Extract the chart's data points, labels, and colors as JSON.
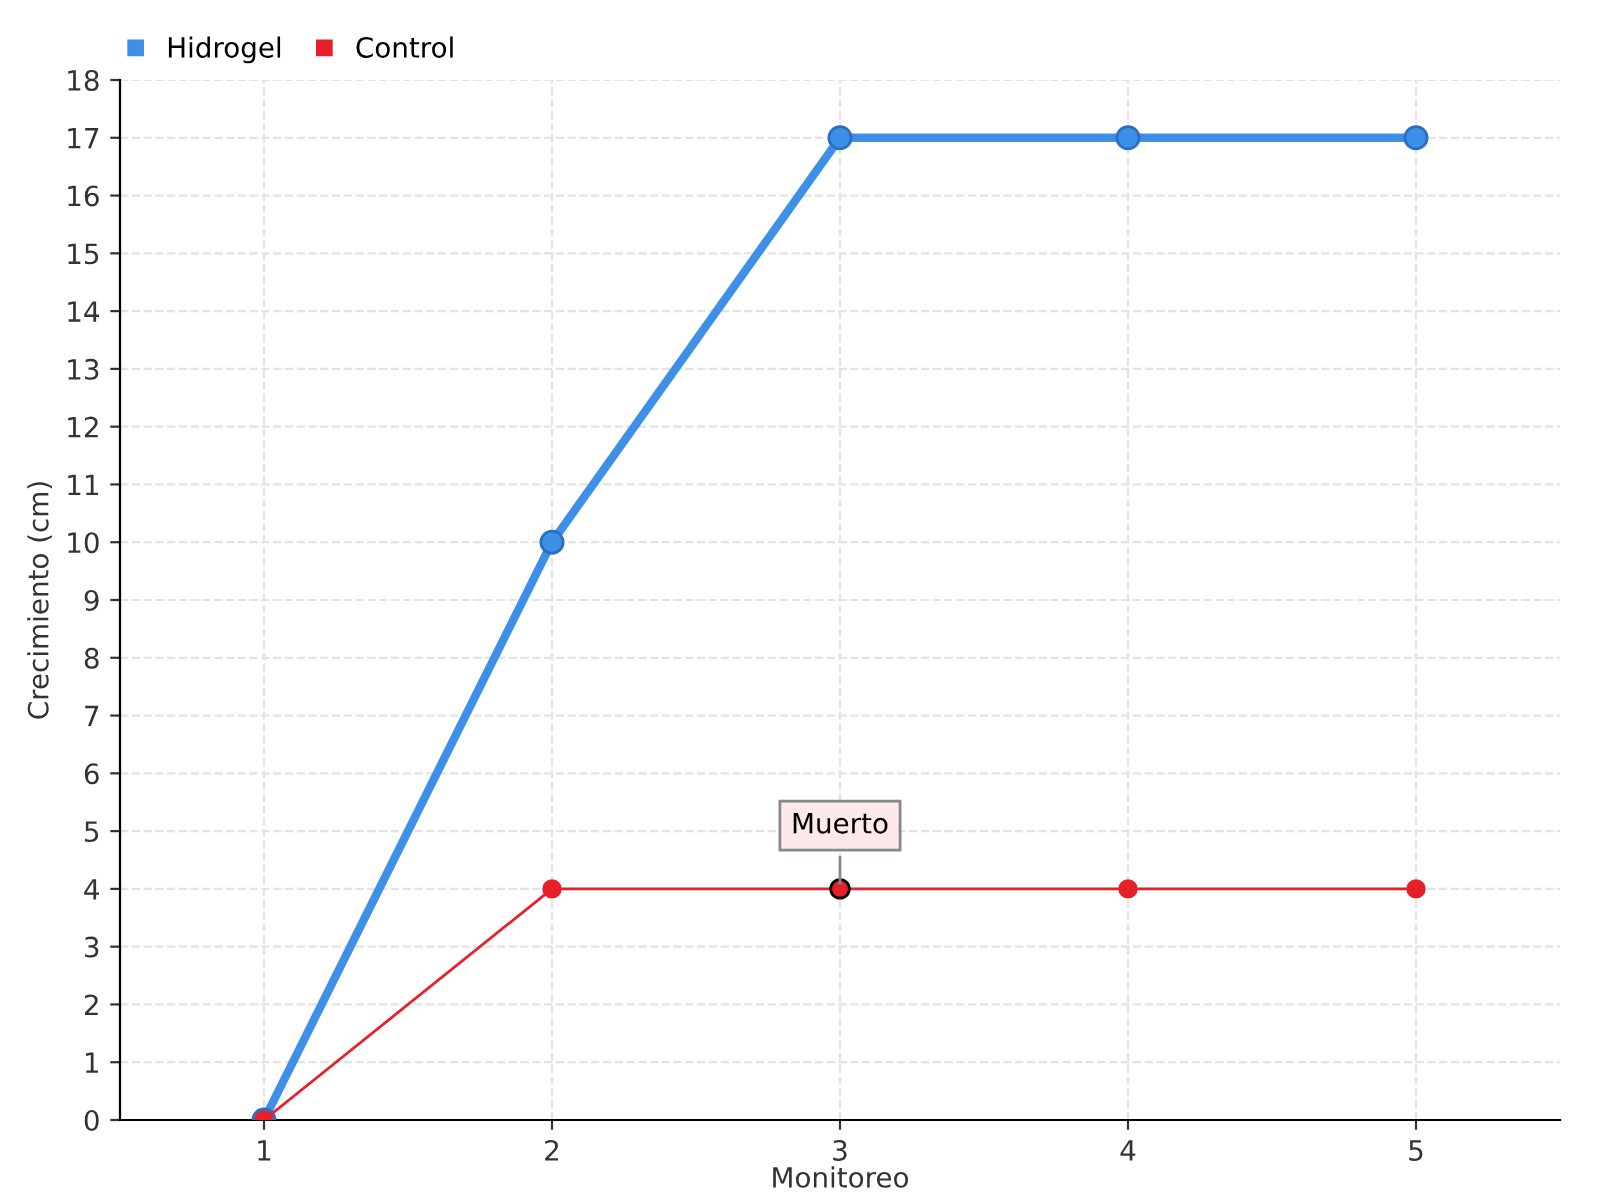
{
  "chart_data": {
    "type": "line",
    "xlabel": "Monitoreo",
    "ylabel": "Crecimiento (cm)",
    "x": [
      1,
      2,
      3,
      4,
      5
    ],
    "series": [
      {
        "name": "Hidrogel",
        "color": "#3d8fe8",
        "values": [
          0,
          10,
          17,
          17,
          17
        ]
      },
      {
        "name": "Control",
        "color": "#e8202a",
        "values": [
          0,
          4,
          4,
          4,
          4
        ]
      }
    ],
    "xlim": [
      0.5,
      5.5
    ],
    "xticks": [
      1,
      2,
      3,
      4,
      5
    ],
    "ylim": [
      0,
      18
    ],
    "yticks": [
      0,
      1,
      2,
      3,
      4,
      5,
      6,
      7,
      8,
      9,
      10,
      11,
      12,
      13,
      14,
      15,
      16,
      17,
      18
    ],
    "annotations": [
      {
        "text": "Muerto",
        "x": 3,
        "y": 4
      }
    ],
    "grid": true,
    "legend": "top left",
    "marker": "circle",
    "line_style": "solid"
  }
}
